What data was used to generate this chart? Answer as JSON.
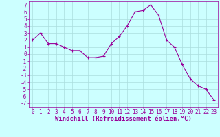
{
  "x": [
    0,
    1,
    2,
    3,
    4,
    5,
    6,
    7,
    8,
    9,
    10,
    11,
    12,
    13,
    14,
    15,
    16,
    17,
    18,
    19,
    20,
    21,
    22,
    23
  ],
  "y": [
    2.0,
    3.0,
    1.5,
    1.5,
    1.0,
    0.5,
    0.5,
    -0.5,
    -0.5,
    -0.3,
    1.5,
    2.5,
    4.0,
    6.0,
    6.2,
    7.0,
    5.5,
    2.0,
    1.0,
    -1.5,
    -3.5,
    -4.5,
    -5.0,
    -6.5
  ],
  "line_color": "#990099",
  "marker": "+",
  "marker_size": 3,
  "bg_color": "#ccffff",
  "grid_color": "#aadddd",
  "xlabel": "Windchill (Refroidissement éolien,°C)",
  "xlabel_color": "#990099",
  "tick_color": "#990099",
  "ylim": [
    -7.5,
    7.5
  ],
  "xlim": [
    -0.5,
    23.5
  ],
  "yticks": [
    7,
    6,
    5,
    4,
    3,
    2,
    1,
    0,
    -1,
    -2,
    -3,
    -4,
    -5,
    -6,
    -7
  ],
  "xticks": [
    0,
    1,
    2,
    3,
    4,
    5,
    6,
    7,
    8,
    9,
    10,
    11,
    12,
    13,
    14,
    15,
    16,
    17,
    18,
    19,
    20,
    21,
    22,
    23
  ],
  "line_width": 0.8,
  "tick_fontsize": 5.5,
  "xlabel_fontsize": 6.5
}
